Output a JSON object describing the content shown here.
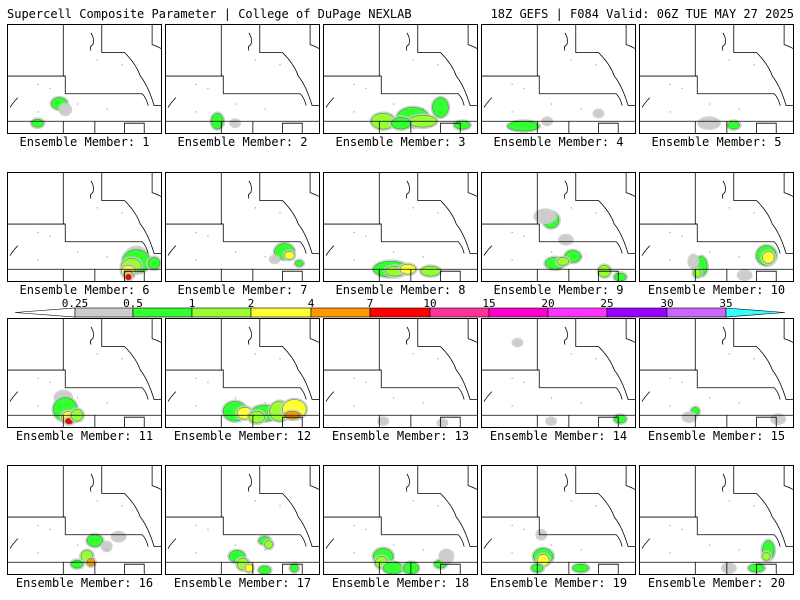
{
  "header": {
    "left": "Supercell Composite Parameter | College of DuPage NEXLAB",
    "right": "18Z GEFS | F084 Valid: 06Z TUE MAY 27 2025"
  },
  "members": [
    {
      "label": "Ensemble Member: 1"
    },
    {
      "label": "Ensemble Member: 2"
    },
    {
      "label": "Ensemble Member: 3"
    },
    {
      "label": "Ensemble Member: 4"
    },
    {
      "label": "Ensemble Member: 5"
    },
    {
      "label": "Ensemble Member: 6"
    },
    {
      "label": "Ensemble Member: 7"
    },
    {
      "label": "Ensemble Member: 8"
    },
    {
      "label": "Ensemble Member: 9"
    },
    {
      "label": "Ensemble Member: 10"
    },
    {
      "label": "Ensemble Member: 11"
    },
    {
      "label": "Ensemble Member: 12"
    },
    {
      "label": "Ensemble Member: 13"
    },
    {
      "label": "Ensemble Member: 14"
    },
    {
      "label": "Ensemble Member: 15"
    },
    {
      "label": "Ensemble Member: 16"
    },
    {
      "label": "Ensemble Member: 17"
    },
    {
      "label": "Ensemble Member: 18"
    },
    {
      "label": "Ensemble Member: 19"
    },
    {
      "label": "Ensemble Member: 20"
    }
  ],
  "colorbar": {
    "ticks": [
      "0.25",
      "0.5",
      "1",
      "2",
      "4",
      "7",
      "10",
      "15",
      "20",
      "25",
      "30",
      "35"
    ],
    "colors": [
      "#cccccc",
      "#33ff33",
      "#99ff33",
      "#ffff33",
      "#ff9900",
      "#ff0000",
      "#ff3399",
      "#ff00cc",
      "#ff33ff",
      "#9900ff",
      "#cc66ff",
      "#33ffff"
    ]
  }
}
